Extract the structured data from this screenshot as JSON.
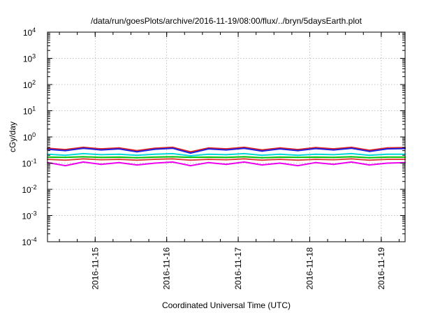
{
  "chart_data": {
    "type": "line",
    "title": "/data/run/goesPlots/archive/2016-11-19/08:00/flux/../bryn/5daysEarth.plot",
    "xlabel": "Coordinated Universal Time (UTC)",
    "ylabel": "cGy/day",
    "yscale": "log",
    "ylim": [
      0.0001,
      10000
    ],
    "xlim": [
      "2016-11-14T08:00",
      "2016-11-19T08:00"
    ],
    "grid": true,
    "legend": "none",
    "yticks": [
      {
        "value": 0.0001,
        "base": "10",
        "exp": "-4"
      },
      {
        "value": 0.001,
        "base": "10",
        "exp": "-3"
      },
      {
        "value": 0.01,
        "base": "10",
        "exp": "-2"
      },
      {
        "value": 0.1,
        "base": "10",
        "exp": "-1"
      },
      {
        "value": 1,
        "base": "10",
        "exp": "0"
      },
      {
        "value": 10,
        "base": "10",
        "exp": "1"
      },
      {
        "value": 100,
        "base": "10",
        "exp": "2"
      },
      {
        "value": 1000,
        "base": "10",
        "exp": "3"
      },
      {
        "value": 10000,
        "base": "10",
        "exp": "4"
      }
    ],
    "xticks": [
      {
        "value": "2016-11-15T00:00",
        "label": "2016-11-15"
      },
      {
        "value": "2016-11-16T00:00",
        "label": "2016-11-16"
      },
      {
        "value": "2016-11-17T00:00",
        "label": "2016-11-17"
      },
      {
        "value": "2016-11-18T00:00",
        "label": "2016-11-18"
      },
      {
        "value": "2016-11-19T00:00",
        "label": "2016-11-19"
      }
    ],
    "series": [
      {
        "color": "#ee00ee",
        "x": [
          "2016-11-14T08:00",
          "2016-11-14T14:00",
          "2016-11-14T20:00",
          "2016-11-15T02:00",
          "2016-11-15T08:00",
          "2016-11-15T14:00",
          "2016-11-15T20:00",
          "2016-11-16T02:00",
          "2016-11-16T08:00",
          "2016-11-16T14:00",
          "2016-11-16T20:00",
          "2016-11-17T02:00",
          "2016-11-17T08:00",
          "2016-11-17T14:00",
          "2016-11-17T20:00",
          "2016-11-18T02:00",
          "2016-11-18T08:00",
          "2016-11-18T14:00",
          "2016-11-18T20:00",
          "2016-11-19T02:00",
          "2016-11-19T08:00"
        ],
        "y": [
          0.105,
          0.08,
          0.11,
          0.09,
          0.105,
          0.085,
          0.1,
          0.11,
          0.08,
          0.105,
          0.09,
          0.11,
          0.085,
          0.1,
          0.08,
          0.105,
          0.09,
          0.11,
          0.085,
          0.1,
          0.105
        ]
      },
      {
        "color": "#e04040",
        "x": [
          "2016-11-14T08:00",
          "2016-11-14T14:00",
          "2016-11-14T20:00",
          "2016-11-15T02:00",
          "2016-11-15T08:00",
          "2016-11-15T14:00",
          "2016-11-15T20:00",
          "2016-11-16T02:00",
          "2016-11-16T08:00",
          "2016-11-16T14:00",
          "2016-11-16T20:00",
          "2016-11-17T02:00",
          "2016-11-17T08:00",
          "2016-11-17T14:00",
          "2016-11-17T20:00",
          "2016-11-18T02:00",
          "2016-11-18T08:00",
          "2016-11-18T14:00",
          "2016-11-18T20:00",
          "2016-11-19T02:00",
          "2016-11-19T08:00"
        ],
        "y": [
          0.14,
          0.13,
          0.145,
          0.135,
          0.14,
          0.13,
          0.14,
          0.145,
          0.13,
          0.14,
          0.135,
          0.145,
          0.13,
          0.14,
          0.13,
          0.14,
          0.135,
          0.145,
          0.13,
          0.14,
          0.14
        ]
      },
      {
        "color": "#00c000",
        "x": [
          "2016-11-14T08:00",
          "2016-11-14T14:00",
          "2016-11-14T20:00",
          "2016-11-15T02:00",
          "2016-11-15T08:00",
          "2016-11-15T14:00",
          "2016-11-15T20:00",
          "2016-11-16T02:00",
          "2016-11-16T08:00",
          "2016-11-16T14:00",
          "2016-11-16T20:00",
          "2016-11-17T02:00",
          "2016-11-17T08:00",
          "2016-11-17T14:00",
          "2016-11-17T20:00",
          "2016-11-18T02:00",
          "2016-11-18T08:00",
          "2016-11-18T14:00",
          "2016-11-18T20:00",
          "2016-11-19T02:00",
          "2016-11-19T08:00"
        ],
        "y": [
          0.17,
          0.165,
          0.175,
          0.165,
          0.17,
          0.16,
          0.17,
          0.175,
          0.165,
          0.17,
          0.165,
          0.175,
          0.16,
          0.17,
          0.165,
          0.17,
          0.165,
          0.175,
          0.16,
          0.17,
          0.17
        ]
      },
      {
        "color": "#00d8d8",
        "x": [
          "2016-11-14T08:00",
          "2016-11-14T14:00",
          "2016-11-14T20:00",
          "2016-11-15T02:00",
          "2016-11-15T08:00",
          "2016-11-15T14:00",
          "2016-11-15T20:00",
          "2016-11-16T02:00",
          "2016-11-16T08:00",
          "2016-11-16T14:00",
          "2016-11-16T20:00",
          "2016-11-17T02:00",
          "2016-11-17T08:00",
          "2016-11-17T14:00",
          "2016-11-17T20:00",
          "2016-11-18T02:00",
          "2016-11-18T08:00",
          "2016-11-18T14:00",
          "2016-11-18T20:00",
          "2016-11-19T02:00",
          "2016-11-19T08:00"
        ],
        "y": [
          0.22,
          0.2,
          0.23,
          0.21,
          0.22,
          0.2,
          0.22,
          0.23,
          0.19,
          0.22,
          0.21,
          0.23,
          0.2,
          0.22,
          0.2,
          0.22,
          0.21,
          0.23,
          0.2,
          0.22,
          0.22
        ]
      },
      {
        "color": "#e02020",
        "x": [
          "2016-11-14T08:00",
          "2016-11-14T14:00",
          "2016-11-14T20:00",
          "2016-11-15T02:00",
          "2016-11-15T08:00",
          "2016-11-15T14:00",
          "2016-11-15T20:00",
          "2016-11-16T02:00",
          "2016-11-16T08:00",
          "2016-11-16T14:00",
          "2016-11-16T20:00",
          "2016-11-17T02:00",
          "2016-11-17T08:00",
          "2016-11-17T14:00",
          "2016-11-17T20:00",
          "2016-11-18T02:00",
          "2016-11-18T08:00",
          "2016-11-18T14:00",
          "2016-11-18T20:00",
          "2016-11-19T02:00",
          "2016-11-19T08:00"
        ],
        "y": [
          0.37,
          0.33,
          0.4,
          0.35,
          0.38,
          0.3,
          0.37,
          0.4,
          0.27,
          0.38,
          0.35,
          0.4,
          0.32,
          0.38,
          0.33,
          0.39,
          0.35,
          0.4,
          0.31,
          0.38,
          0.39
        ]
      },
      {
        "color": "#2020e0",
        "x": [
          "2016-11-14T08:00",
          "2016-11-14T14:00",
          "2016-11-14T20:00",
          "2016-11-15T02:00",
          "2016-11-15T08:00",
          "2016-11-15T14:00",
          "2016-11-15T20:00",
          "2016-11-16T02:00",
          "2016-11-16T08:00",
          "2016-11-16T14:00",
          "2016-11-16T20:00",
          "2016-11-17T02:00",
          "2016-11-17T08:00",
          "2016-11-17T14:00",
          "2016-11-17T20:00",
          "2016-11-18T02:00",
          "2016-11-18T08:00",
          "2016-11-18T14:00",
          "2016-11-18T20:00",
          "2016-11-19T02:00",
          "2016-11-19T08:00"
        ],
        "y": [
          0.34,
          0.3,
          0.37,
          0.32,
          0.35,
          0.27,
          0.34,
          0.37,
          0.24,
          0.35,
          0.32,
          0.37,
          0.29,
          0.35,
          0.3,
          0.36,
          0.32,
          0.37,
          0.28,
          0.35,
          0.36
        ]
      }
    ]
  }
}
